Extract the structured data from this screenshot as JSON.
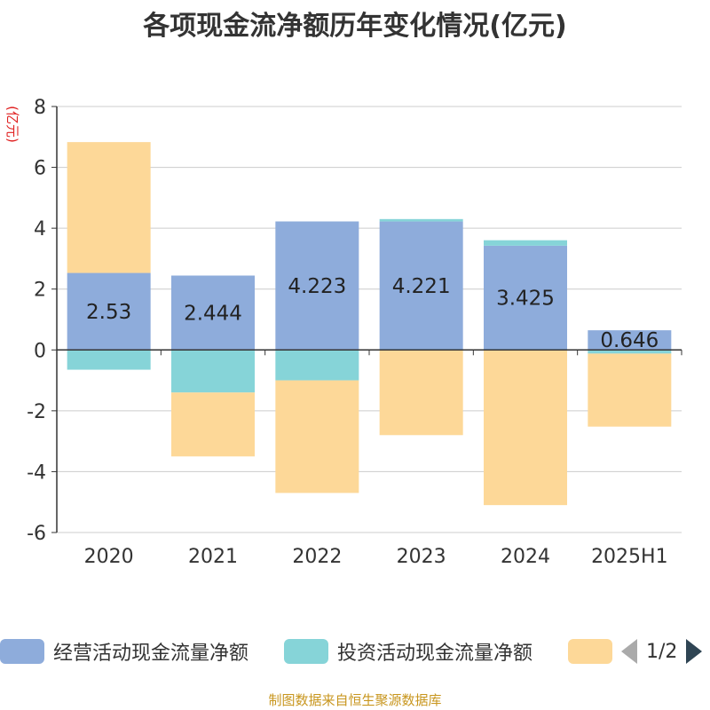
{
  "title": "各项现金流净额历年变化情况(亿元)",
  "source": "制图数据来自恒生聚源数据库",
  "colors": {
    "operating": "#8eacdb",
    "investing": "#86d4d8",
    "financing": "#fdd898",
    "axis": "#333333",
    "grid": "#cccccc",
    "ylabel": "#e02020"
  },
  "legend": {
    "items": [
      {
        "label": "经营活动现金流量净额",
        "color": "#8eacdb"
      },
      {
        "label": "投资活动现金流量净额",
        "color": "#86d4d8"
      },
      {
        "label": "",
        "color": "#fdd898"
      }
    ],
    "page": "1/2"
  },
  "chart_data": {
    "type": "bar",
    "stacked": true,
    "ylabel": "(亿元)",
    "ylim": [
      -6,
      8
    ],
    "yticks": [
      -6,
      -4,
      -2,
      0,
      2,
      4,
      6,
      8
    ],
    "categories": [
      "2020",
      "2021",
      "2022",
      "2023",
      "2024",
      "2025H1"
    ],
    "series": [
      {
        "name": "经营活动现金流量净额",
        "values": [
          2.53,
          2.444,
          4.223,
          4.221,
          3.425,
          0.646
        ],
        "labels": [
          "2.53",
          "2.444",
          "4.223",
          "4.221",
          "3.425",
          "0.646"
        ]
      },
      {
        "name": "投资活动现金流量净额",
        "values": [
          -0.65,
          -1.4,
          -1.0,
          0.08,
          0.18,
          -0.12
        ]
      },
      {
        "values": [
          4.3,
          -2.1,
          -3.7,
          -2.8,
          -5.1,
          -2.4
        ]
      }
    ]
  }
}
